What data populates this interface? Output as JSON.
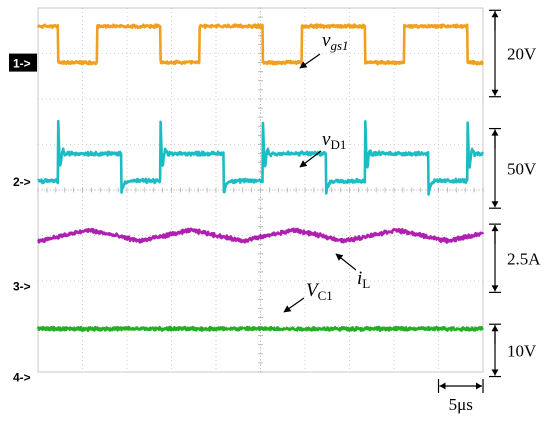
{
  "chart_data": {
    "type": "line",
    "title": "",
    "xlabel": "",
    "ylabel": "",
    "grid": true,
    "x_divisions": 10,
    "y_divisions": 8,
    "time_scale": {
      "label": "5μs",
      "value_us": 5,
      "per_division": true
    },
    "channel_markers": [
      {
        "label": "1->",
        "highlighted": true,
        "level_div": 2.8
      },
      {
        "label": "2->",
        "highlighted": false,
        "level_div": 0.2
      },
      {
        "label": "3->",
        "highlighted": false,
        "level_div": -2.1
      },
      {
        "label": "4->",
        "highlighted": false,
        "level_div": -4.1
      }
    ],
    "scale_bars": [
      {
        "label": "20V",
        "top_div": 3.95,
        "bottom_div": 2.05
      },
      {
        "label": "50V",
        "top_div": 1.35,
        "bottom_div": -0.4
      },
      {
        "label": "2.5A",
        "top_div": -0.75,
        "bottom_div": -2.25
      },
      {
        "label": "10V",
        "top_div": -2.95,
        "bottom_div": -4.1
      }
    ],
    "series": [
      {
        "label_main": "v",
        "label_sub": "gs1",
        "italic_main": true,
        "color": "#f0a020",
        "waveform": "square",
        "high_div": 3.6,
        "low_div": 2.8,
        "period_div": 2.3,
        "high_fraction": 0.62,
        "first_fall_div": 0.45,
        "noise_div": 0.04
      },
      {
        "label_main": "v",
        "label_sub": "D1",
        "italic_main": true,
        "color": "#1cbcc4",
        "waveform": "switching",
        "high_div": 0.8,
        "low_div": 0.2,
        "period_div": 2.3,
        "high_fraction": 0.62,
        "first_rise_div": 0.45,
        "spike_div": 0.8,
        "noise_div": 0.05
      },
      {
        "label_main": "i",
        "label_sub": "L",
        "italic_main": true,
        "color": "#b020b0",
        "waveform": "triangle",
        "mean_div": -1.0,
        "ripple_div": 0.12,
        "period_div": 2.3,
        "noise_div": 0.05
      },
      {
        "label_main": "V",
        "label_sub": "C1",
        "italic_main": true,
        "color": "#22b022",
        "waveform": "dc",
        "mean_div": -3.05,
        "noise_div": 0.045
      }
    ]
  }
}
